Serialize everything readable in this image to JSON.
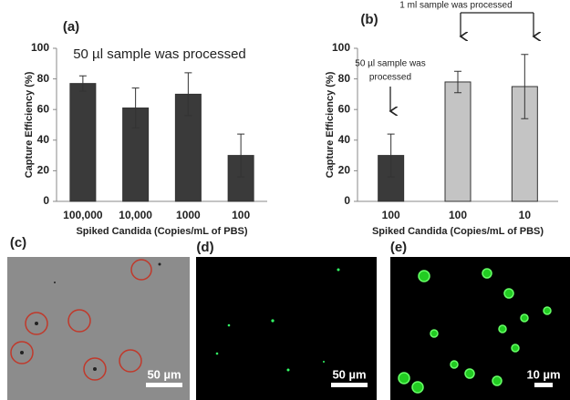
{
  "chart_data": [
    {
      "type": "bar",
      "panel_label": "(a)",
      "annotations": [
        {
          "lines": [
            "50 µl sample was processed"
          ]
        }
      ],
      "categories": [
        "100,000",
        "10,000",
        "1000",
        "100"
      ],
      "values": [
        77,
        61,
        70,
        30
      ],
      "errors": [
        5,
        13,
        14,
        14
      ],
      "colors": [
        "#3a3a3a",
        "#3a3a3a",
        "#3a3a3a",
        "#3a3a3a"
      ],
      "xlabel": "Spiked Candida  (Copies/mL of PBS)",
      "ylabel": "Capture Efficiency (%)",
      "ylim": [
        0,
        100
      ],
      "yticks": [
        0,
        20,
        40,
        60,
        80,
        100
      ]
    },
    {
      "type": "bar",
      "panel_label": "(b)",
      "annotations": [
        {
          "lines": [
            "50 µl sample was",
            "processed"
          ]
        },
        {
          "lines": [
            "1 ml sample was processed"
          ]
        }
      ],
      "categories": [
        "100",
        "100",
        "10"
      ],
      "values": [
        30,
        78,
        75
      ],
      "errors": [
        14,
        7,
        21
      ],
      "colors": [
        "#3a3a3a",
        "#c4c4c4",
        "#c4c4c4"
      ],
      "xlabel": "Spiked Candida  (Copies/mL of PBS)",
      "ylabel": "Capture Efficiency (%)",
      "ylim": [
        0,
        100
      ],
      "yticks": [
        0,
        20,
        40,
        60,
        80,
        100
      ]
    }
  ],
  "images": [
    {
      "panel_label": "(c)",
      "scale_bar": "50 µm"
    },
    {
      "panel_label": "(d)",
      "scale_bar": "50 µm"
    },
    {
      "panel_label": "(e)",
      "scale_bar": "10 µm"
    }
  ]
}
